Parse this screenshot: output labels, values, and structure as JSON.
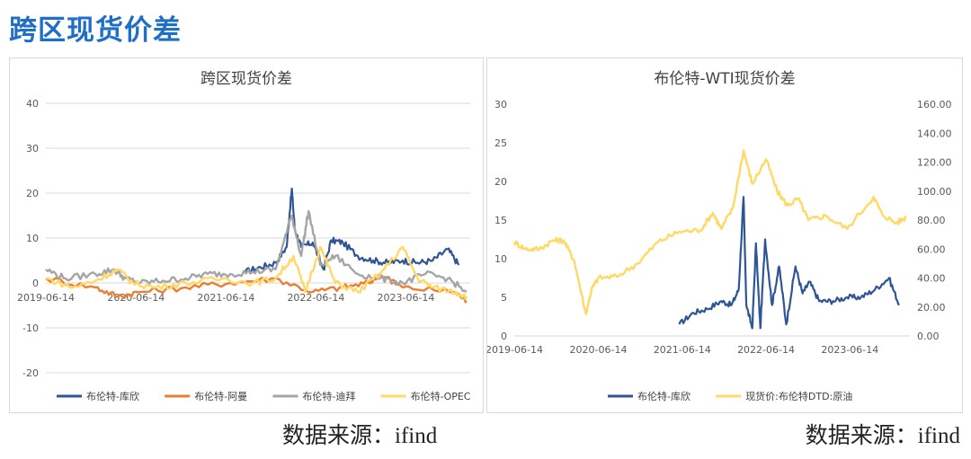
{
  "page": {
    "title": "跨区现货价差",
    "source_left": "数据来源：ifind",
    "source_right": "数据来源：ifind"
  },
  "chart_data": [
    {
      "type": "line",
      "title": "跨区现货价差",
      "xlabel": "",
      "ylabel": "",
      "ylim": [
        -20,
        40
      ],
      "yticks": [
        "40",
        "30",
        "20",
        "10",
        "0",
        "-10",
        "-20"
      ],
      "xticks": [
        "2019-06-14",
        "2020-06-14",
        "2021-06-14",
        "2022-06-14",
        "2023-06-14"
      ],
      "grid": true,
      "legend": "bottom",
      "series": [
        {
          "name": "布伦特-库欣",
          "color": "#2f5597",
          "x": [
            "2021-09-01",
            "2021-11-01",
            "2022-01-01",
            "2022-02-15",
            "2022-03-08",
            "2022-03-20",
            "2022-04-15",
            "2022-06-01",
            "2022-07-15",
            "2022-08-15",
            "2022-10-01",
            "2022-12-01",
            "2023-02-01",
            "2023-04-01",
            "2023-06-01",
            "2023-08-01",
            "2023-10-01",
            "2023-12-01",
            "2024-01-15"
          ],
          "values": [
            2.5,
            3.5,
            4.5,
            8,
            21,
            12,
            8,
            9,
            3,
            9.5,
            9,
            6,
            5,
            4.5,
            5,
            4.5,
            5,
            7.5,
            4
          ]
        },
        {
          "name": "布伦特-阿曼",
          "color": "#ed7d31",
          "x": [
            "2019-06-14",
            "2020-01-01",
            "2020-04-01",
            "2020-07-01",
            "2021-01-01",
            "2021-07-01",
            "2022-01-01",
            "2022-06-01",
            "2022-10-01",
            "2023-01-15",
            "2023-03-01",
            "2023-06-01",
            "2024-01-01",
            "2024-02-15"
          ],
          "values": [
            1,
            -1,
            -3,
            -2,
            -1,
            0,
            1,
            -2,
            -1,
            0,
            2,
            -1,
            -2,
            -4
          ]
        },
        {
          "name": "布伦特-迪拜",
          "color": "#a5a5a5",
          "x": [
            "2019-06-14",
            "2019-09-01",
            "2020-01-01",
            "2020-03-15",
            "2020-05-01",
            "2020-07-01",
            "2020-10-01",
            "2021-01-01",
            "2021-04-01",
            "2021-07-01",
            "2021-10-01",
            "2022-01-01",
            "2022-03-08",
            "2022-04-15",
            "2022-05-15",
            "2022-07-01",
            "2022-09-01",
            "2022-12-01",
            "2023-03-01",
            "2023-06-01",
            "2023-09-01",
            "2023-12-01",
            "2024-02-15"
          ],
          "values": [
            3,
            1,
            2,
            3,
            1,
            0,
            0.5,
            1,
            2,
            2,
            2.5,
            3,
            15,
            6,
            16,
            4,
            6,
            2,
            1,
            0,
            2,
            1,
            -2
          ]
        },
        {
          "name": "布伦特-OPEC",
          "color": "#ffd966",
          "x": [
            "2019-06-14",
            "2019-10-01",
            "2020-01-01",
            "2020-04-01",
            "2020-06-01",
            "2020-09-01",
            "2021-01-01",
            "2021-06-01",
            "2021-10-01",
            "2022-01-01",
            "2022-03-15",
            "2022-05-01",
            "2022-07-01",
            "2022-09-01",
            "2022-12-01",
            "2023-03-01",
            "2023-06-01",
            "2023-08-01",
            "2023-10-01",
            "2024-01-01",
            "2024-02-15"
          ],
          "values": [
            1,
            -1,
            0.5,
            3,
            0,
            -1,
            0,
            1,
            0,
            1,
            6,
            -2,
            8,
            0,
            -2,
            2,
            8,
            1,
            -1,
            -2,
            -3
          ]
        }
      ]
    },
    {
      "type": "line",
      "title": "布伦特-WTI现货价差",
      "xlabel": "",
      "ylabel": "",
      "ylim": [
        0,
        30
      ],
      "y2lim": [
        0,
        160
      ],
      "yticks": [
        "30",
        "25",
        "20",
        "15",
        "10",
        "5",
        "0"
      ],
      "y2ticks": [
        "160.00",
        "140.00",
        "120.00",
        "100.00",
        "80.00",
        "60.00",
        "40.00",
        "20.00",
        "0.00"
      ],
      "xticks": [
        "2019-06-14",
        "2020-06-14",
        "2021-06-14",
        "2022-06-14",
        "2023-06-14"
      ],
      "grid": false,
      "legend": "bottom",
      "series": [
        {
          "name": "布伦特-库欣",
          "axis": "left",
          "color": "#2f5597",
          "x": [
            "2021-06-01",
            "2021-08-01",
            "2021-10-01",
            "2021-12-01",
            "2022-01-15",
            "2022-02-15",
            "2022-03-08",
            "2022-03-20",
            "2022-04-15",
            "2022-05-01",
            "2022-05-20",
            "2022-06-10",
            "2022-07-10",
            "2022-08-10",
            "2022-09-10",
            "2022-10-20",
            "2022-11-20",
            "2022-12-20",
            "2023-02-01",
            "2023-04-01",
            "2023-06-01",
            "2023-08-01",
            "2023-10-01",
            "2023-12-01",
            "2024-01-15"
          ],
          "values": [
            1.5,
            3,
            3.5,
            4.5,
            4,
            6,
            18,
            4,
            1,
            12,
            1,
            12.5,
            4,
            9,
            1.5,
            9,
            5.5,
            7,
            4.5,
            4.5,
            5,
            5,
            6,
            7.5,
            4
          ]
        },
        {
          "name": "现货价:布伦特DTD:原油",
          "axis": "right",
          "color": "#ffd966",
          "x": [
            "2019-06-14",
            "2019-08-01",
            "2019-10-01",
            "2019-12-01",
            "2020-01-15",
            "2020-03-01",
            "2020-04-21",
            "2020-05-15",
            "2020-06-14",
            "2020-09-01",
            "2020-12-01",
            "2021-03-01",
            "2021-06-01",
            "2021-09-01",
            "2021-10-25",
            "2021-12-01",
            "2022-01-20",
            "2022-03-08",
            "2022-04-15",
            "2022-06-14",
            "2022-08-01",
            "2022-09-15",
            "2022-11-01",
            "2022-12-15",
            "2023-03-01",
            "2023-06-01",
            "2023-09-25",
            "2023-11-01",
            "2024-01-01",
            "2024-02-15"
          ],
          "values": [
            65,
            60,
            60,
            66,
            66,
            52,
            15,
            32,
            40,
            41,
            50,
            65,
            72,
            73,
            85,
            74,
            88,
            128,
            105,
            122,
            100,
            90,
            95,
            80,
            83,
            74,
            96,
            84,
            78,
            82
          ]
        }
      ]
    }
  ]
}
